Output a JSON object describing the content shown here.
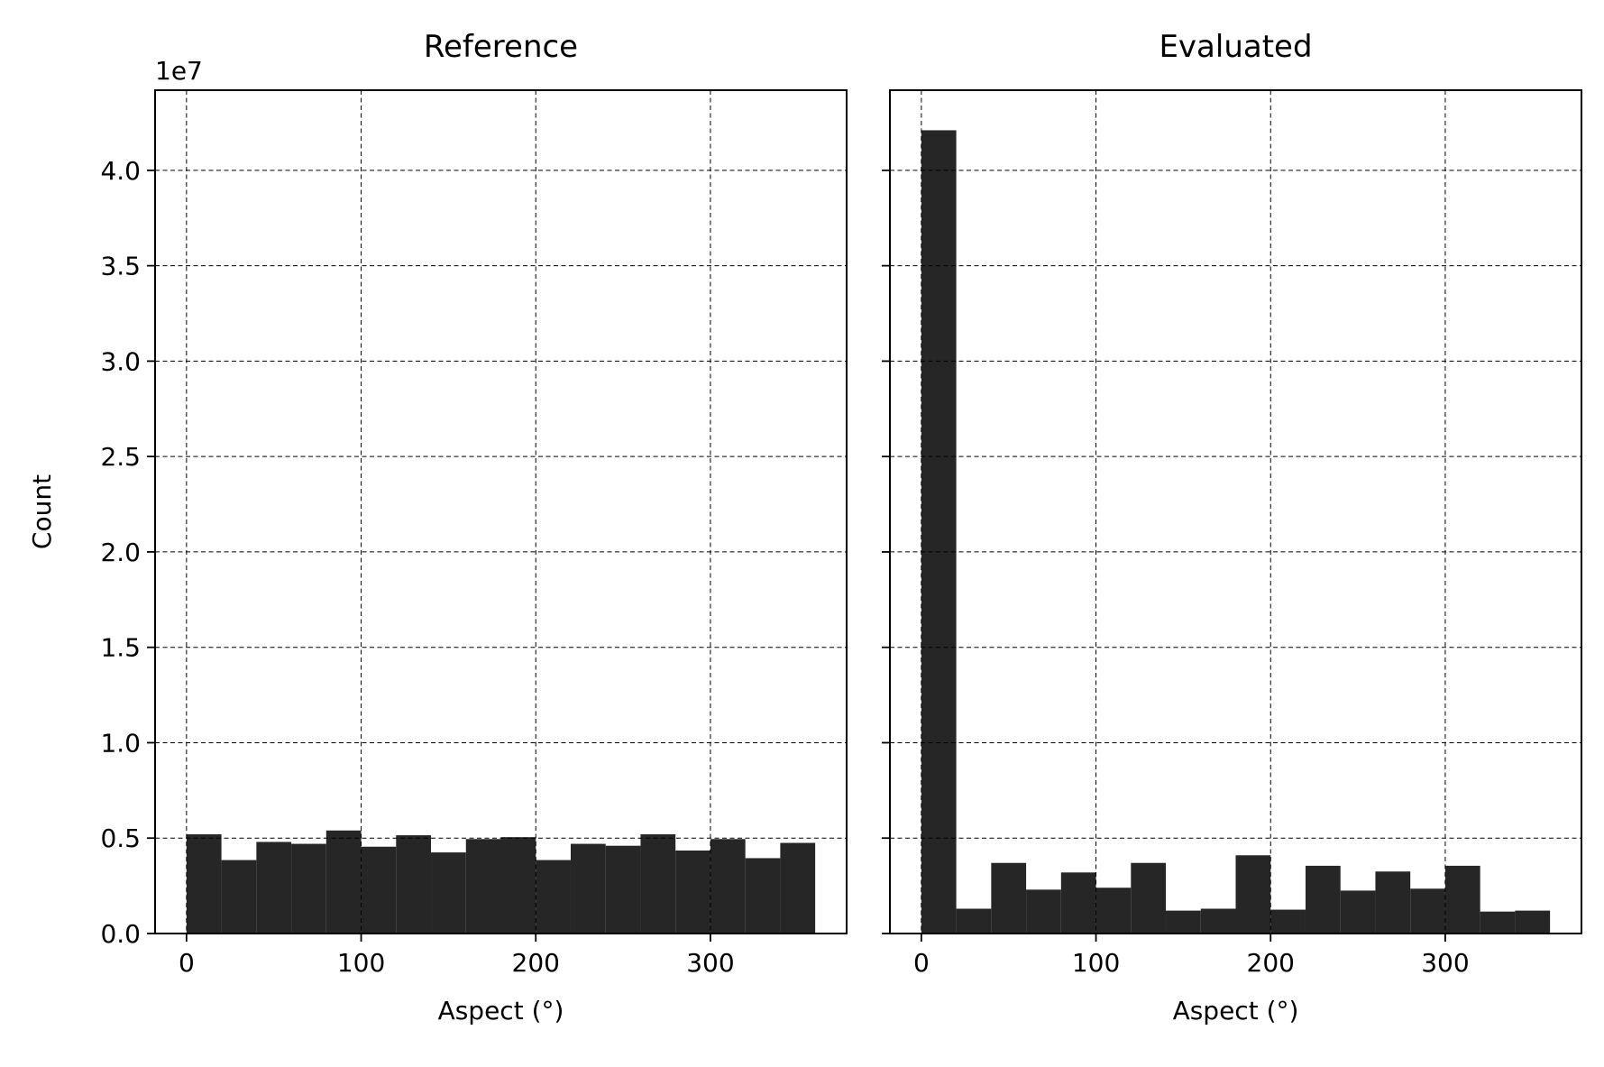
{
  "chart_data": [
    {
      "type": "bar",
      "title": "Reference",
      "xlabel": "Aspect (°)",
      "ylabel": "Count",
      "y_offset_label": "1e7",
      "bin_edges": [
        0,
        20,
        40,
        60,
        80,
        100,
        120,
        140,
        160,
        180,
        200,
        220,
        240,
        260,
        280,
        300,
        320,
        340,
        360
      ],
      "values": [
        5.2,
        3.85,
        4.8,
        4.7,
        5.4,
        4.55,
        5.15,
        4.25,
        4.95,
        5.05,
        3.85,
        4.7,
        4.6,
        5.2,
        4.35,
        4.95,
        3.95,
        4.75
      ],
      "value_scale": 10000000,
      "xlim": [
        -18,
        378
      ],
      "ylim": [
        0,
        4.42
      ],
      "xticks": [
        0,
        100,
        200,
        300
      ],
      "xtick_labels": [
        "0",
        "100",
        "200",
        "300"
      ],
      "yticks": [
        0,
        0.5,
        1.0,
        1.5,
        2.0,
        2.5,
        3.0,
        3.5,
        4.0
      ],
      "ytick_labels": [
        "0.0",
        "0.5",
        "1.0",
        "1.5",
        "2.0",
        "2.5",
        "3.0",
        "3.5",
        "4.0"
      ],
      "grid": true,
      "bar_color": "#262626"
    },
    {
      "type": "bar",
      "title": "Evaluated",
      "xlabel": "Aspect (°)",
      "ylabel": "",
      "bin_edges": [
        0,
        20,
        40,
        60,
        80,
        100,
        120,
        140,
        160,
        180,
        200,
        220,
        240,
        260,
        280,
        300,
        320,
        340,
        360
      ],
      "values": [
        42.1,
        1.3,
        3.7,
        2.3,
        3.2,
        2.4,
        3.7,
        1.2,
        1.3,
        4.1,
        1.25,
        3.55,
        2.25,
        3.25,
        2.35,
        3.55,
        1.15,
        1.2
      ],
      "value_scale": 10000000,
      "xlim": [
        -18,
        378
      ],
      "ylim": [
        0,
        4.42
      ],
      "xticks": [
        0,
        100,
        200,
        300
      ],
      "xtick_labels": [
        "0",
        "100",
        "200",
        "300"
      ],
      "yticks": [
        0,
        0.5,
        1.0,
        1.5,
        2.0,
        2.5,
        3.0,
        3.5,
        4.0
      ],
      "ytick_labels": [
        "",
        "",
        "",
        "",
        "",
        "",
        "",
        "",
        ""
      ],
      "grid": true,
      "bar_color": "#262626"
    }
  ]
}
